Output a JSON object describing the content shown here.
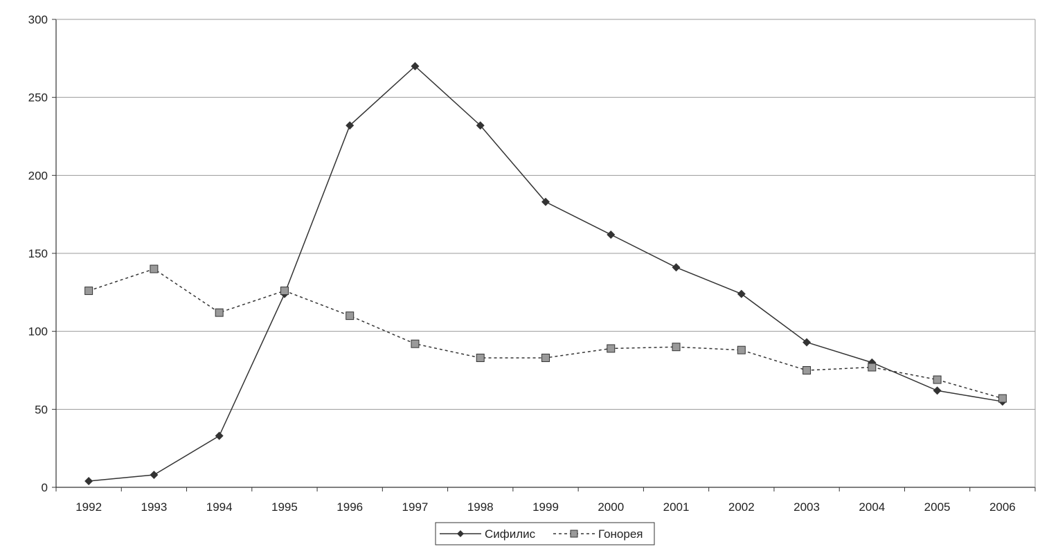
{
  "chart_data": {
    "type": "line",
    "title": "",
    "xlabel": "",
    "ylabel": "",
    "categories": [
      "1992",
      "1993",
      "1994",
      "1995",
      "1996",
      "1997",
      "1998",
      "1999",
      "2000",
      "2001",
      "2002",
      "2003",
      "2004",
      "2005",
      "2006"
    ],
    "ylim": [
      0,
      300
    ],
    "yticks": [
      0,
      50,
      100,
      150,
      200,
      250,
      300
    ],
    "grid": true,
    "legend_position": "bottom",
    "series": [
      {
        "name": "Сифилис",
        "marker": "diamond",
        "line_style": "solid",
        "color": "#333333",
        "values": [
          4,
          8,
          33,
          124,
          232,
          270,
          232,
          183,
          162,
          141,
          124,
          93,
          80,
          62,
          55
        ]
      },
      {
        "name": "Гонорея",
        "marker": "square",
        "line_style": "dashed",
        "color": "#333333",
        "marker_fill": "#9a9a9a",
        "values": [
          126,
          140,
          112,
          126,
          110,
          92,
          83,
          83,
          89,
          90,
          88,
          75,
          77,
          69,
          57
        ]
      }
    ]
  }
}
